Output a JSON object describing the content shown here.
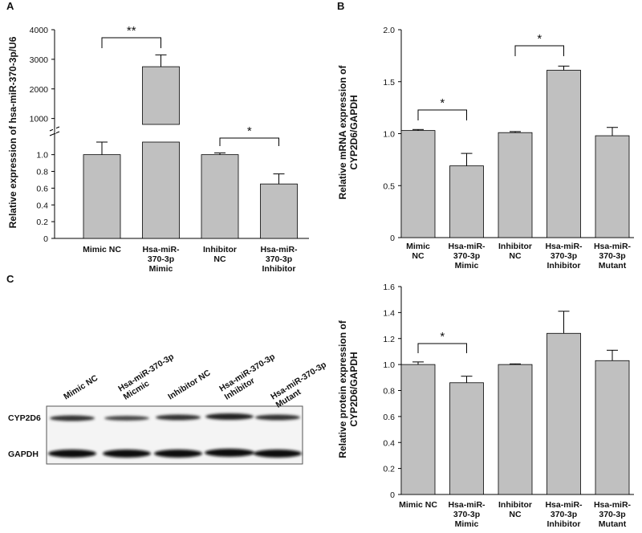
{
  "panel_labels": {
    "a": "A",
    "b": "B",
    "c": "C"
  },
  "blot": {
    "lanes": [
      "Mimic NC",
      "Hsa-miR-370-3p\nMicmic",
      "Inhibitor NC",
      "Hsa-miR-370-3p\nInhibitor",
      "Hsa-miR-370-3p\nMutant"
    ],
    "rows": [
      "CYP2D6",
      "GAPDH"
    ]
  },
  "chart_data": [
    {
      "type": "bar",
      "ylabel": "Relative expression of hsa-miR-370-3p/U6",
      "categories": [
        "Mimic NC",
        "Hsa-miR-\n370-3p\nMimic",
        "Inhibitor\nNC",
        "Hsa-miR-\n370-3p\nInhibitor"
      ],
      "values": [
        1.0,
        2750,
        1.0,
        0.65
      ],
      "errors": [
        0.15,
        400,
        0.02,
        0.12
      ],
      "color": "#c0c0c0",
      "y_segments": [
        {
          "ylim": [
            0,
            1.15
          ],
          "yticks": [
            0,
            0.2,
            0.4,
            0.6,
            0.8,
            {
              "value": 1.0,
              "label": "1.0"
            }
          ]
        },
        {
          "ylim": [
            800,
            4000
          ],
          "yticks": [
            1000,
            2000,
            3000,
            4000
          ]
        }
      ],
      "annotations": [
        {
          "from": 0,
          "to": 1,
          "text": "**"
        },
        {
          "from": 2,
          "to": 3,
          "text": "*"
        }
      ]
    },
    {
      "type": "bar",
      "ylabel": "Relative mRNA expression of\nCYP2D6/GAPDH",
      "categories": [
        "Mimic\nNC",
        "Hsa-miR-\n370-3p\nMimic",
        "Inhibitor\nNC",
        "Hsa-miR-\n370-3p\nInhibitor",
        "Hsa-miR-\n370-3p\nMutant"
      ],
      "values": [
        1.03,
        0.69,
        1.01,
        1.61,
        0.98
      ],
      "errors": [
        0.01,
        0.12,
        0.01,
        0.04,
        0.08
      ],
      "color": "#c0c0c0",
      "ylim": [
        0,
        2.0
      ],
      "yticks": [
        0,
        0.5,
        {
          "value": 1.0,
          "label": "1.0"
        },
        1.5,
        {
          "value": 2.0,
          "label": "2.0"
        }
      ],
      "annotations": [
        {
          "from": 0,
          "to": 1,
          "text": "*"
        },
        {
          "from": 2,
          "to": 3,
          "text": "*"
        }
      ]
    },
    {
      "type": "bar",
      "ylabel": "Relative protein expression of\nCYP2D6/GAPDH",
      "categories": [
        "Mimic NC",
        "Hsa-miR-\n370-3p\nMimic",
        "Inhibitor\nNC",
        "Hsa-miR-\n370-3p\nInhibitor",
        "Hsa-miR-\n370-3p\nMutant"
      ],
      "values": [
        1.0,
        0.86,
        1.0,
        1.24,
        1.03
      ],
      "errors": [
        0.02,
        0.05,
        0.005,
        0.17,
        0.08
      ],
      "color": "#c0c0c0",
      "ylim": [
        0,
        1.6
      ],
      "yticks": [
        0,
        0.2,
        0.4,
        0.6,
        0.8,
        {
          "value": 1.0,
          "label": "1.0"
        },
        1.2,
        1.4,
        1.6
      ],
      "annotations": [
        {
          "from": 0,
          "to": 1,
          "text": "*"
        }
      ]
    }
  ]
}
